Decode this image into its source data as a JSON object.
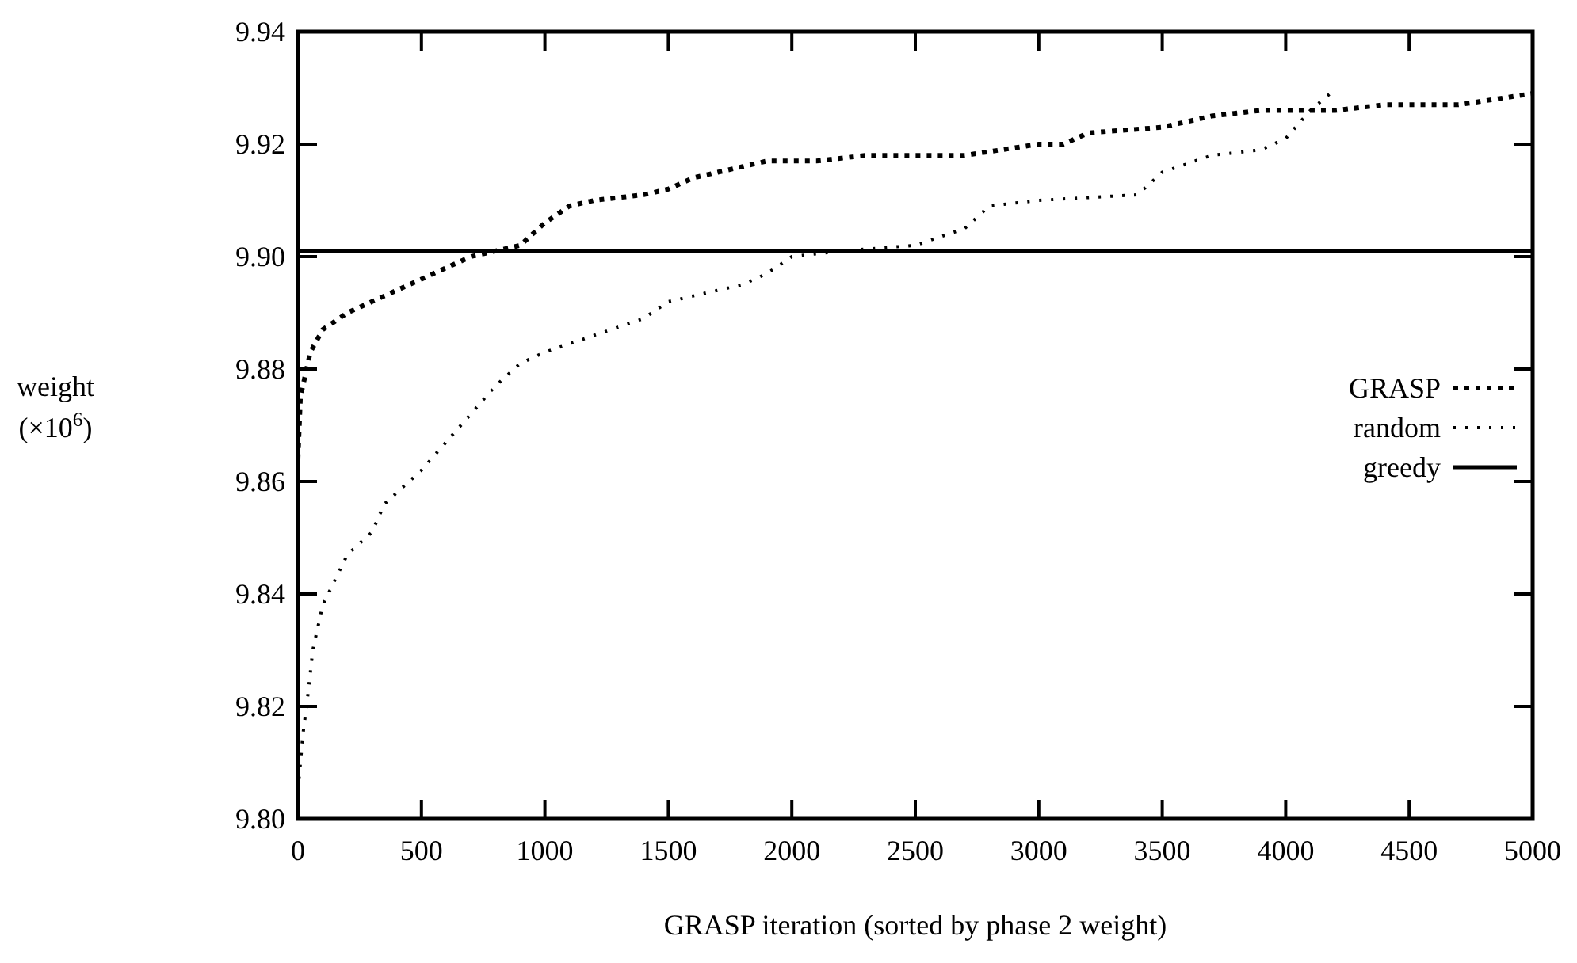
{
  "chart_data": {
    "type": "line",
    "xlabel": "GRASP iteration (sorted by phase 2 weight)",
    "ylabel": "weight\n(×10$^{6}$)",
    "xlim": [
      0,
      5000
    ],
    "xticks": [
      0,
      500,
      1000,
      1500,
      2000,
      2500,
      3000,
      3500,
      4000,
      4500,
      5000
    ],
    "ylim": [
      9.8,
      9.94
    ],
    "yticks": [
      {
        "value": 9.8,
        "label": "9.80"
      },
      {
        "value": 9.82,
        "label": "9.82"
      },
      {
        "value": 9.84,
        "label": "9.84"
      },
      {
        "value": 9.86,
        "label": "9.86"
      },
      {
        "value": 9.88,
        "label": "9.88"
      },
      {
        "value": 9.9,
        "label": "9.90"
      },
      {
        "value": 9.92,
        "label": "9.92"
      },
      {
        "value": 9.94,
        "label": "9.94"
      }
    ],
    "grid": false,
    "legend": "right",
    "series": [
      {
        "name": "GRASP",
        "color": "#000000",
        "line_style": "dashed",
        "x": [
          0,
          10,
          50,
          100,
          200,
          300,
          400,
          500,
          600,
          700,
          900,
          1000,
          1100,
          1200,
          1400,
          1500,
          1600,
          1700,
          1900,
          2100,
          2300,
          2700,
          3000,
          3100,
          3200,
          3500,
          3700,
          3900,
          4100,
          4200,
          4400,
          4700,
          5000
        ],
        "values": [
          9.864,
          9.875,
          9.883,
          9.887,
          9.89,
          9.892,
          9.894,
          9.896,
          9.898,
          9.9,
          9.902,
          9.906,
          9.909,
          9.91,
          9.911,
          9.912,
          9.914,
          9.915,
          9.917,
          9.917,
          9.918,
          9.918,
          9.92,
          9.92,
          9.922,
          9.923,
          9.925,
          9.926,
          9.926,
          9.926,
          9.927,
          9.927,
          9.929
        ]
      },
      {
        "name": "random",
        "color": "#000000",
        "line_style": "dotted",
        "x": [
          0,
          20,
          40,
          60,
          100,
          200,
          300,
          350,
          500,
          600,
          700,
          800,
          900,
          1000,
          1200,
          1400,
          1500,
          1800,
          1900,
          2000,
          2200,
          2500,
          2700,
          2800,
          3000,
          3400,
          3500,
          3700,
          3900,
          4000,
          4100,
          4180
        ],
        "values": [
          9.805,
          9.815,
          9.822,
          9.83,
          9.838,
          9.847,
          9.851,
          9.856,
          9.862,
          9.867,
          9.872,
          9.877,
          9.881,
          9.883,
          9.886,
          9.889,
          9.892,
          9.895,
          9.897,
          9.9,
          9.901,
          9.902,
          9.905,
          9.909,
          9.91,
          9.911,
          9.915,
          9.918,
          9.919,
          9.921,
          9.926,
          9.929
        ]
      }
    ],
    "ref_lines": [
      {
        "axis": "y",
        "value": 9.901,
        "label": "greedy",
        "color": "#000000",
        "line_style": "solid"
      }
    ]
  }
}
